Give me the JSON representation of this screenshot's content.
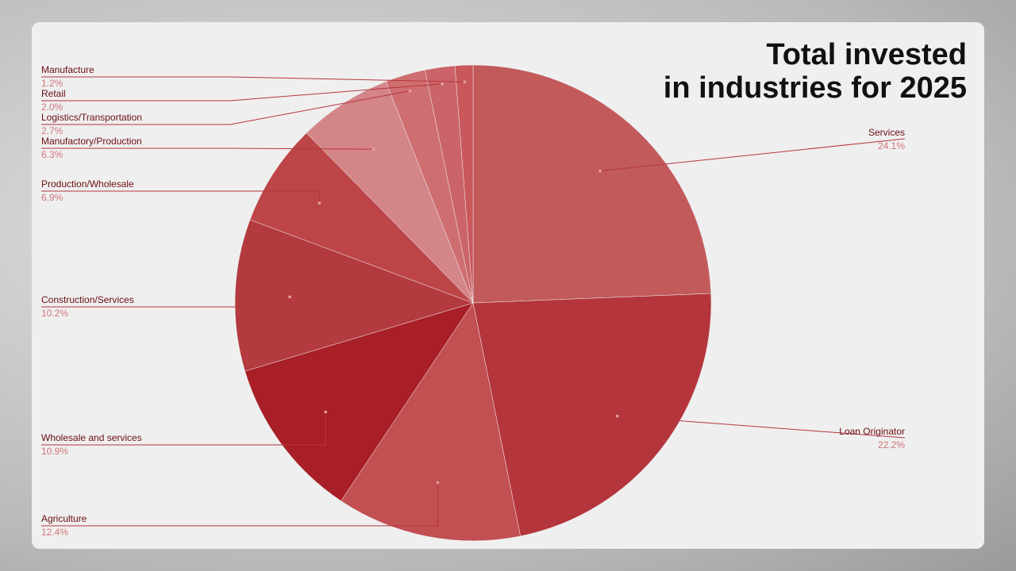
{
  "chart_data": {
    "type": "pie",
    "title": "Total invested\nin industries for 2025",
    "categories": [
      "Services",
      "Loan Originator",
      "Agriculture",
      "Wholesale and services",
      "Construction/Services",
      "Production/Wholesale",
      "Manufactory/Production",
      "Logistics/Transportation",
      "Retail",
      "Manufacture"
    ],
    "values": [
      24.1,
      22.2,
      12.4,
      10.9,
      10.2,
      6.9,
      6.3,
      2.7,
      2.0,
      1.2
    ],
    "value_labels": [
      "24.1%",
      "22.2%",
      "12.4%",
      "10.9%",
      "10.2%",
      "6.9%",
      "6.3%",
      "2.7%",
      "2.0%",
      "1.2%"
    ],
    "colors": [
      "#c25a5c",
      "#b5353d",
      "#c24f52",
      "#a91f27",
      "#b33a3f",
      "#bd4548",
      "#d48587",
      "#cf6e71",
      "#cb6468",
      "#c9585c"
    ]
  }
}
